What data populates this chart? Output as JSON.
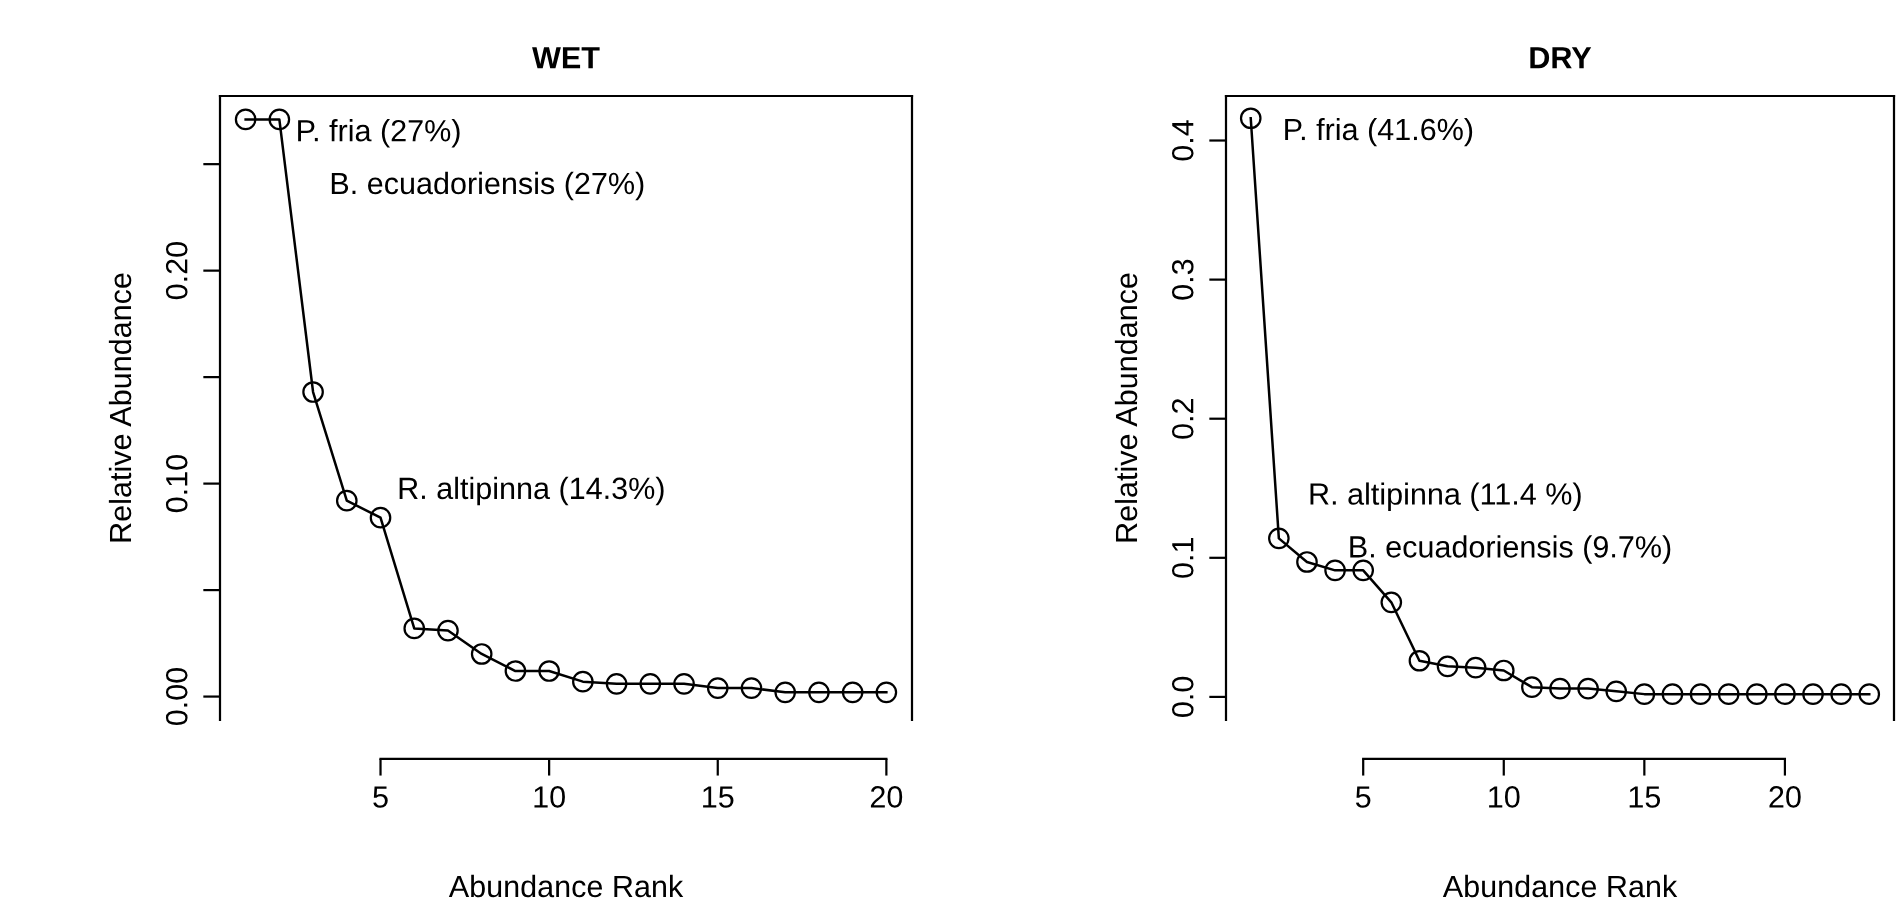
{
  "chart_data": [
    {
      "type": "line",
      "title": "WET",
      "xlabel": "Abundance Rank",
      "ylabel": "Relative Abundance",
      "marker": "circle",
      "line_style": "solid",
      "grid": false,
      "legend": false,
      "x": [
        1,
        2,
        3,
        4,
        5,
        6,
        7,
        8,
        9,
        10,
        11,
        12,
        13,
        14,
        15,
        16,
        17,
        18,
        19,
        20
      ],
      "series": [
        {
          "color": "#000000",
          "values": [
            0.271,
            0.271,
            0.143,
            0.092,
            0.084,
            0.032,
            0.031,
            0.02,
            0.012,
            0.012,
            0.007,
            0.006,
            0.006,
            0.006,
            0.004,
            0.004,
            0.002,
            0.002,
            0.002,
            0.002
          ]
        }
      ],
      "xlim": [
        0.24,
        20.76
      ],
      "xticks": [
        5,
        10,
        15,
        20
      ],
      "ylim": [
        -0.011,
        0.282
      ],
      "yticks": [
        {
          "value": 0.0,
          "label": "0.00"
        },
        {
          "value": 0.05,
          "label": null
        },
        {
          "value": 0.1,
          "label": "0.10"
        },
        {
          "value": 0.15,
          "label": null
        },
        {
          "value": 0.2,
          "label": "0.20"
        },
        {
          "value": 0.25,
          "label": null
        }
      ],
      "annotations": [
        {
          "text": "P. fria (27%)",
          "x": 1,
          "y": 0.271
        },
        {
          "text": "B. ecuadoriensis (27%)",
          "x": 2,
          "y": 0.271
        },
        "R. altipinna (14.3%)"
      ]
    },
    {
      "type": "line",
      "title": "DRY",
      "xlabel": "Abundance Rank",
      "ylabel": "Relative Abundance",
      "marker": "circle",
      "line_style": "solid",
      "grid": false,
      "legend": false,
      "x": [
        1,
        2,
        3,
        4,
        5,
        6,
        7,
        8,
        9,
        10,
        11,
        12,
        13,
        14,
        15,
        16,
        17,
        18,
        19,
        20,
        21,
        22,
        23
      ],
      "series": [
        {
          "color": "#000000",
          "values": [
            0.416,
            0.114,
            0.097,
            0.091,
            0.091,
            0.068,
            0.026,
            0.022,
            0.021,
            0.019,
            0.007,
            0.006,
            0.006,
            0.004,
            0.002,
            0.002,
            0.002,
            0.002,
            0.002,
            0.002,
            0.002,
            0.002,
            0.002
          ]
        }
      ],
      "xlim": [
        0.12,
        23.88
      ],
      "xticks": [
        5,
        10,
        15,
        20
      ],
      "ylim": [
        -0.0166,
        0.432
      ],
      "yticks": [
        {
          "value": 0.0,
          "label": "0.0"
        },
        {
          "value": 0.1,
          "label": "0.1"
        },
        {
          "value": 0.2,
          "label": "0.2"
        },
        {
          "value": 0.3,
          "label": "0.3"
        },
        {
          "value": 0.4,
          "label": "0.4"
        }
      ],
      "annotations": [
        {
          "text": "P. fria (41.6%)",
          "x": 1,
          "y": 0.416
        },
        {
          "text": "R. altipinna (11.4 %)",
          "x": 2,
          "y": 0.114
        },
        {
          "text": "B. ecuadoriensis (9.7%)",
          "x": 3,
          "y": 0.097
        }
      ]
    }
  ]
}
